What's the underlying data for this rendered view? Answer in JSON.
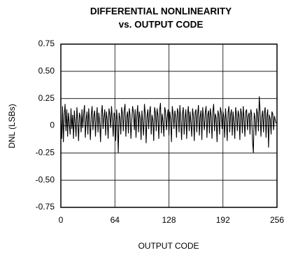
{
  "chart_data": {
    "type": "line",
    "title": [
      "DIFFERENTIAL NONLINEARITY",
      "vs. OUTPUT CODE"
    ],
    "x_label": "OUTPUT CODE",
    "y_label": "DNL (LSBs)",
    "color": "#000000",
    "grid": true,
    "xlim": [
      0,
      256
    ],
    "xticks": [
      0,
      64,
      128,
      192,
      256
    ],
    "ylim": [
      -0.75,
      0.75
    ],
    "yticks": [
      -0.75,
      {
        "value": -0.5,
        "label": "-0.50"
      },
      -0.25,
      0,
      0.25,
      {
        "value": 0.5,
        "label": "0.50"
      },
      0.75
    ],
    "x": [
      0,
      1,
      2,
      3,
      4,
      5,
      6,
      7,
      8,
      9,
      10,
      11,
      12,
      13,
      14,
      15,
      16,
      17,
      18,
      19,
      20,
      21,
      22,
      23,
      24,
      25,
      26,
      27,
      28,
      29,
      30,
      31,
      32,
      33,
      34,
      35,
      36,
      37,
      38,
      39,
      40,
      41,
      42,
      43,
      44,
      45,
      46,
      47,
      48,
      49,
      50,
      51,
      52,
      53,
      54,
      55,
      56,
      57,
      58,
      59,
      60,
      61,
      62,
      63,
      64,
      65,
      66,
      67,
      68,
      69,
      70,
      71,
      72,
      73,
      74,
      75,
      76,
      77,
      78,
      79,
      80,
      81,
      82,
      83,
      84,
      85,
      86,
      87,
      88,
      89,
      90,
      91,
      92,
      93,
      94,
      95,
      96,
      97,
      98,
      99,
      100,
      101,
      102,
      103,
      104,
      105,
      106,
      107,
      108,
      109,
      110,
      111,
      112,
      113,
      114,
      115,
      116,
      117,
      118,
      119,
      120,
      121,
      122,
      123,
      124,
      125,
      126,
      127,
      128,
      129,
      130,
      131,
      132,
      133,
      134,
      135,
      136,
      137,
      138,
      139,
      140,
      141,
      142,
      143,
      144,
      145,
      146,
      147,
      148,
      149,
      150,
      151,
      152,
      153,
      154,
      155,
      156,
      157,
      158,
      159,
      160,
      161,
      162,
      163,
      164,
      165,
      166,
      167,
      168,
      169,
      170,
      171,
      172,
      173,
      174,
      175,
      176,
      177,
      178,
      179,
      180,
      181,
      182,
      183,
      184,
      185,
      186,
      187,
      188,
      189,
      190,
      191,
      192,
      193,
      194,
      195,
      196,
      197,
      198,
      199,
      200,
      201,
      202,
      203,
      204,
      205,
      206,
      207,
      208,
      209,
      210,
      211,
      212,
      213,
      214,
      215,
      216,
      217,
      218,
      219,
      220,
      221,
      222,
      223,
      224,
      225,
      226,
      227,
      228,
      229,
      230,
      231,
      232,
      233,
      234,
      235,
      236,
      237,
      238,
      239,
      240,
      241,
      242,
      243,
      244,
      245,
      246,
      247,
      248,
      249,
      250,
      251,
      252,
      253,
      254,
      255
    ],
    "values": [
      0.05,
      -0.12,
      0.18,
      -0.15,
      0.1,
      0.2,
      -0.05,
      0.15,
      -0.1,
      0.12,
      0.02,
      -0.08,
      0.16,
      -0.03,
      0.1,
      -0.12,
      0.14,
      0.03,
      -0.1,
      0.17,
      0.05,
      -0.14,
      0.12,
      0.08,
      -0.06,
      0.15,
      -0.02,
      0.11,
      0.19,
      -0.11,
      0.06,
      0.13,
      -0.08,
      0.16,
      0.04,
      -0.13,
      0.1,
      0.18,
      -0.04,
      0.09,
      0.14,
      -0.1,
      0.07,
      0.17,
      -0.06,
      0.12,
      0.03,
      -0.15,
      0.11,
      0.19,
      -0.03,
      0.08,
      0.15,
      -0.09,
      0.13,
      0.05,
      -0.12,
      0.16,
      0.1,
      -0.02,
      0.18,
      0.06,
      -0.1,
      0.12,
      0.09,
      -0.14,
      0.15,
      0.04,
      -0.25,
      0.12,
      0.07,
      -0.08,
      0.17,
      0.11,
      -0.05,
      0.14,
      0.2,
      -0.1,
      0.08,
      0.13,
      -0.07,
      0.16,
      0.1,
      -0.12,
      0.05,
      0.18,
      0.12,
      -0.04,
      0.15,
      -0.11,
      0.09,
      0.19,
      -0.06,
      0.13,
      0.07,
      -0.13,
      0.14,
      0.02,
      -0.09,
      0.2,
      0.11,
      -0.16,
      0.08,
      0.15,
      -0.03,
      0.12,
      0.18,
      -0.08,
      0.1,
      0.05,
      -0.14,
      0.17,
      0.12,
      -0.05,
      0.16,
      0.09,
      -0.12,
      0.14,
      0.21,
      -0.07,
      0.11,
      0.04,
      -0.1,
      0.17,
      0.13,
      -0.04,
      0.08,
      0.15,
      -0.09,
      0.13,
      0.06,
      -0.15,
      0.18,
      0.1,
      -0.03,
      0.14,
      0.08,
      -0.11,
      0.16,
      0.12,
      -0.06,
      0.19,
      0.05,
      -0.13,
      0.11,
      0.17,
      -0.08,
      0.07,
      0.15,
      -0.12,
      0.1,
      0.18,
      -0.05,
      0.13,
      0.03,
      -0.1,
      0.16,
      0.09,
      -0.14,
      0.12,
      0.15,
      -0.06,
      0.11,
      0.19,
      -0.09,
      0.08,
      0.14,
      -0.13,
      0.17,
      0.06,
      -0.04,
      0.12,
      0.18,
      -0.11,
      0.1,
      0.14,
      -0.07,
      0.16,
      0.09,
      -0.12,
      0.13,
      0.2,
      -0.05,
      0.11,
      0.07,
      -0.15,
      0.14,
      0.1,
      -0.08,
      0.17,
      0.12,
      -0.03,
      0.13,
      0.08,
      -0.11,
      0.16,
      0.05,
      -0.14,
      0.12,
      0.18,
      -0.06,
      0.1,
      0.15,
      -0.09,
      0.13,
      0.04,
      -0.12,
      0.17,
      0.1,
      -0.05,
      0.14,
      0.09,
      -0.13,
      0.16,
      0.11,
      -0.07,
      0.18,
      0.06,
      -0.1,
      0.13,
      0.15,
      -0.04,
      0.09,
      0.12,
      -0.08,
      0.15,
      0.1,
      -0.14,
      -0.25,
      0.12,
      0.07,
      -0.09,
      0.16,
      0.11,
      -0.05,
      0.27,
      0.13,
      -0.1,
      0.08,
      0.14,
      -0.06,
      0.12,
      0.17,
      -0.11,
      0.09,
      0.15,
      -0.2,
      0.1,
      0.06,
      -0.08,
      0.13,
      0.11,
      -0.04,
      0.09,
      0.05,
      0.02
    ]
  }
}
